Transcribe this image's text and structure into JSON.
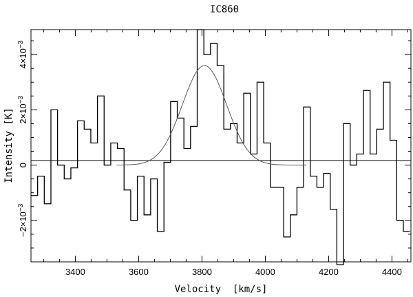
{
  "chart_data": {
    "type": "line",
    "title": "IC860",
    "xlabel": "Velocity  [km/s]",
    "ylabel": "Intensity [K]",
    "xlim": [
      3260,
      4460
    ],
    "ylim": [
      -0.0035,
      0.0049
    ],
    "x_ticks": [
      3400,
      3600,
      3800,
      4000,
      4200,
      4400
    ],
    "x_tick_labels": [
      "3400",
      "3600",
      "3800",
      "4000",
      "4200",
      "4400"
    ],
    "y_ticks": [
      -0.002,
      0.0,
      0.002,
      0.004
    ],
    "y_tick_labels": [
      {
        "mantissa": "−2×10",
        "exp": "−3"
      },
      {
        "mantissa": "0",
        "exp": ""
      },
      {
        "mantissa": "2×10",
        "exp": "−3"
      },
      {
        "mantissa": "4×10",
        "exp": "−3"
      }
    ],
    "grid": false,
    "zero_line": true,
    "series": [
      {
        "style": "histogram-step",
        "channel_width_kms": 21,
        "x_start": 3260,
        "values": [
          -0.0011,
          -0.0004,
          -0.0014,
          0.002,
          0.0,
          -0.0005,
          -0.0001,
          0.0016,
          0.0013,
          0.0008,
          0.0025,
          0.0,
          0.0008,
          0.0006,
          -0.0009,
          -0.002,
          -0.0004,
          -0.0018,
          -0.0005,
          -0.0024,
          0.0001,
          0.0023,
          0.0017,
          0.0006,
          0.0014,
          0.0049,
          0.004,
          0.0044,
          0.0036,
          0.0013,
          0.0015,
          0.0008,
          0.0026,
          0.0004,
          0.003,
          0.0008,
          -0.0008,
          -0.0008,
          -0.0026,
          -0.0018,
          -0.0008,
          0.0021,
          -0.0004,
          -0.0008,
          -0.0003,
          -0.0016,
          -0.0036,
          0.0015,
          0.0,
          0.0004,
          0.0027,
          0.0004,
          0.0013,
          0.003,
          0.0009,
          -0.002,
          -0.0024
        ]
      },
      {
        "style": "gaussian-fit",
        "amplitude": 0.0036,
        "center": 3808,
        "sigma": 70
      }
    ]
  }
}
